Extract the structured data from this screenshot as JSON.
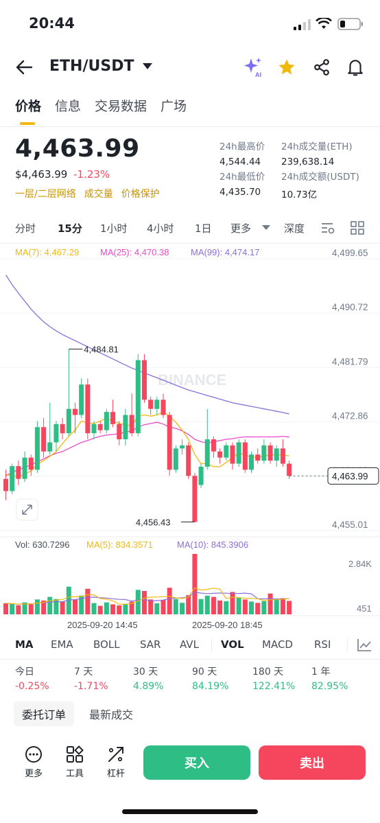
{
  "status_bar": {
    "time": "20:44"
  },
  "header": {
    "pair": "ETH/USDT"
  },
  "tabs": [
    "价格",
    "信息",
    "交易数据",
    "广场"
  ],
  "ticker": {
    "last_price": "4,463.99",
    "fiat_price": "$4,463.99",
    "change_pct": "-1.23%",
    "tags": [
      "一层/二层网络",
      "成交量",
      "价格保护"
    ],
    "stats": [
      {
        "label": "24h最高价",
        "value": "4,544.44"
      },
      {
        "label": "24h成交量(ETH)",
        "value": "239,638.14"
      },
      {
        "label": "24h最低价",
        "value": "4,435.70"
      },
      {
        "label": "24h成交额(USDT)",
        "value": "10.73亿"
      }
    ]
  },
  "intervals": {
    "items": [
      "分时",
      "15分",
      "1小时",
      "4小时",
      "1日",
      "更多",
      "深度"
    ],
    "active": "15分"
  },
  "ma_legend": {
    "ma7": "MA(7): 4,467.29",
    "ma25": "MA(25): 4,470.38",
    "ma99": "MA(99): 4,474.17"
  },
  "vol_legend": {
    "vol": "Vol: 630.7296",
    "ma5": "MA(5): 834.3571",
    "ma10": "MA(10): 845.3906"
  },
  "watermark": "BINANCE",
  "colors": {
    "up": "#2ebd85",
    "down": "#f6465d",
    "ma7": "#f0b90b",
    "ma25": "#e84ac9",
    "ma99": "#8a6ed9",
    "accent": "#f0b90b"
  },
  "chart_data": {
    "type": "candlestick",
    "price_axis": {
      "labels": [
        "4,499.65",
        "4,490.72",
        "4,481.79",
        "4,472.86",
        "4,464.93",
        "4,455.01"
      ],
      "ylim": [
        4455.01,
        4499.65
      ]
    },
    "volume_axis": {
      "labels": [
        "2.84K",
        "451"
      ]
    },
    "x_labels": [
      "2025-09-20 14:45",
      "2025-09-20 18:45"
    ],
    "high_label": "4,484.81",
    "low_label": "4,456.43",
    "current_price_label": "4,463.99",
    "candles": [
      {
        "o": 4463.5,
        "c": 4461.5,
        "h": 4465.0,
        "l": 4460.0,
        "v": 520
      },
      {
        "o": 4461.5,
        "c": 4465.6,
        "h": 4466.0,
        "l": 4461.0,
        "v": 480
      },
      {
        "o": 4465.6,
        "c": 4463.5,
        "h": 4466.5,
        "l": 4462.5,
        "v": 430
      },
      {
        "o": 4463.5,
        "c": 4467.0,
        "h": 4468.0,
        "l": 4463.0,
        "v": 560
      },
      {
        "o": 4467.0,
        "c": 4465.0,
        "h": 4467.5,
        "l": 4464.0,
        "v": 470
      },
      {
        "o": 4465.0,
        "c": 4472.0,
        "h": 4473.0,
        "l": 4464.5,
        "v": 700
      },
      {
        "o": 4472.0,
        "c": 4468.0,
        "h": 4473.5,
        "l": 4467.0,
        "v": 650
      },
      {
        "o": 4468.0,
        "c": 4469.5,
        "h": 4476.0,
        "l": 4467.5,
        "v": 820
      },
      {
        "o": 4469.5,
        "c": 4472.5,
        "h": 4473.0,
        "l": 4468.0,
        "v": 720
      },
      {
        "o": 4472.5,
        "c": 4471.0,
        "h": 4473.5,
        "l": 4470.0,
        "v": 600
      },
      {
        "o": 4471.0,
        "c": 4475.0,
        "h": 4484.81,
        "l": 4470.5,
        "v": 1300
      },
      {
        "o": 4475.0,
        "c": 4474.0,
        "h": 4476.0,
        "l": 4471.0,
        "v": 680
      },
      {
        "o": 4474.0,
        "c": 4479.0,
        "h": 4480.0,
        "l": 4473.5,
        "v": 880
      },
      {
        "o": 4479.0,
        "c": 4471.0,
        "h": 4480.0,
        "l": 4470.0,
        "v": 1200
      },
      {
        "o": 4471.0,
        "c": 4472.5,
        "h": 4473.0,
        "l": 4470.0,
        "v": 530
      },
      {
        "o": 4472.5,
        "c": 4471.5,
        "h": 4473.0,
        "l": 4471.0,
        "v": 400
      },
      {
        "o": 4471.5,
        "c": 4474.5,
        "h": 4475.0,
        "l": 4471.0,
        "v": 560
      },
      {
        "o": 4474.5,
        "c": 4472.5,
        "h": 4476.5,
        "l": 4472.0,
        "v": 470
      },
      {
        "o": 4472.5,
        "c": 4470.0,
        "h": 4473.0,
        "l": 4469.0,
        "v": 420
      },
      {
        "o": 4470.0,
        "c": 4474.0,
        "h": 4475.0,
        "l": 4469.0,
        "v": 500
      },
      {
        "o": 4474.0,
        "c": 4471.0,
        "h": 4477.5,
        "l": 4470.5,
        "v": 600
      },
      {
        "o": 4471.0,
        "c": 4483.0,
        "h": 4484.0,
        "l": 4470.5,
        "v": 1150
      },
      {
        "o": 4483.0,
        "c": 4476.5,
        "h": 4484.0,
        "l": 4476.0,
        "v": 1100
      },
      {
        "o": 4476.5,
        "c": 4475.0,
        "h": 4477.0,
        "l": 4474.0,
        "v": 700
      },
      {
        "o": 4475.0,
        "c": 4476.5,
        "h": 4477.0,
        "l": 4474.0,
        "v": 520
      },
      {
        "o": 4476.5,
        "c": 4474.0,
        "h": 4477.5,
        "l": 4473.5,
        "v": 680
      },
      {
        "o": 4474.0,
        "c": 4465.0,
        "h": 4474.5,
        "l": 4464.0,
        "v": 1250
      },
      {
        "o": 4465.0,
        "c": 4468.5,
        "h": 4469.0,
        "l": 4464.5,
        "v": 720
      },
      {
        "o": 4468.5,
        "c": 4469.0,
        "h": 4470.0,
        "l": 4467.5,
        "v": 540
      },
      {
        "o": 4469.0,
        "c": 4464.0,
        "h": 4469.5,
        "l": 4463.5,
        "v": 900
      },
      {
        "o": 4464.0,
        "c": 4456.43,
        "h": 4464.5,
        "l": 4456.43,
        "v": 2840
      },
      {
        "o": 4462.5,
        "c": 4465.5,
        "h": 4466.0,
        "l": 4462.0,
        "v": 720
      },
      {
        "o": 4465.5,
        "c": 4470.0,
        "h": 4475.0,
        "l": 4465.0,
        "v": 880
      },
      {
        "o": 4470.0,
        "c": 4468.0,
        "h": 4470.5,
        "l": 4467.0,
        "v": 820
      },
      {
        "o": 4468.0,
        "c": 4467.0,
        "h": 4468.5,
        "l": 4466.0,
        "v": 650
      },
      {
        "o": 4467.0,
        "c": 4469.0,
        "h": 4469.5,
        "l": 4466.5,
        "v": 620
      },
      {
        "o": 4469.0,
        "c": 4466.0,
        "h": 4469.5,
        "l": 4465.0,
        "v": 1050
      },
      {
        "o": 4466.0,
        "c": 4469.5,
        "h": 4470.0,
        "l": 4465.5,
        "v": 780
      },
      {
        "o": 4469.5,
        "c": 4465.0,
        "h": 4470.0,
        "l": 4464.5,
        "v": 700
      },
      {
        "o": 4465.0,
        "c": 4467.5,
        "h": 4468.0,
        "l": 4464.5,
        "v": 600
      },
      {
        "o": 4467.5,
        "c": 4466.5,
        "h": 4468.5,
        "l": 4466.0,
        "v": 540
      },
      {
        "o": 4466.5,
        "c": 4469.0,
        "h": 4470.0,
        "l": 4466.0,
        "v": 620
      },
      {
        "o": 4469.0,
        "c": 4466.5,
        "h": 4469.5,
        "l": 4466.0,
        "v": 980
      },
      {
        "o": 4466.5,
        "c": 4468.5,
        "h": 4469.0,
        "l": 4465.5,
        "v": 700
      },
      {
        "o": 4468.5,
        "c": 4466.0,
        "h": 4470.0,
        "l": 4465.5,
        "v": 760
      },
      {
        "o": 4466.0,
        "c": 4463.99,
        "h": 4466.5,
        "l": 4463.5,
        "v": 631
      }
    ],
    "ma7": [
      4464.2,
      4464.0,
      4463.8,
      4464.3,
      4464.8,
      4465.9,
      4466.5,
      4467.2,
      4468.0,
      4469.3,
      4470.5,
      4471.5,
      4473.0,
      4472.7,
      4472.6,
      4473.0,
      4473.5,
      4473.0,
      4472.6,
      4472.4,
      4472.2,
      4473.8,
      4474.0,
      4473.8,
      4474.0,
      4474.5,
      4473.8,
      4472.8,
      4471.5,
      4470.0,
      4467.5,
      4466.0,
      4466.0,
      4465.5,
      4465.5,
      4466.2,
      4467.0,
      4467.8,
      4467.4,
      4467.1,
      4467.0,
      4467.3,
      4467.4,
      4467.5,
      4467.4,
      4467.29
    ],
    "ma25": [
      4464.0,
      4464.6,
      4465.0,
      4465.4,
      4465.8,
      4466.3,
      4466.8,
      4467.3,
      4467.7,
      4468.0,
      4468.5,
      4469.0,
      4469.5,
      4469.8,
      4470.2,
      4470.5,
      4470.7,
      4470.8,
      4470.9,
      4471.2,
      4471.4,
      4472.0,
      4472.4,
      4472.6,
      4472.8,
      4472.5,
      4472.0,
      4471.8,
      4471.4,
      4470.8,
      4470.0,
      4469.6,
      4469.4,
      4469.6,
      4469.8,
      4470.0,
      4470.1,
      4470.3,
      4470.4,
      4470.4,
      4470.4,
      4470.4,
      4470.4,
      4470.4,
      4470.5,
      4470.38
    ],
    "ma99": [
      4497.0,
      4495.4,
      4494.0,
      4492.7,
      4491.4,
      4490.3,
      4489.3,
      4488.5,
      4487.8,
      4487.2,
      4486.7,
      4486.2,
      4485.7,
      4485.2,
      4484.7,
      4484.2,
      4483.7,
      4483.2,
      4482.7,
      4482.2,
      4481.7,
      4481.3,
      4480.9,
      4480.5,
      4480.1,
      4479.7,
      4479.3,
      4478.9,
      4478.5,
      4478.1,
      4477.8,
      4477.5,
      4477.2,
      4476.9,
      4476.6,
      4476.3,
      4476.0,
      4475.8,
      4475.6,
      4475.4,
      4475.2,
      4475.0,
      4474.8,
      4474.6,
      4474.4,
      4474.17
    ]
  },
  "indicators": {
    "items": [
      "MA",
      "EMA",
      "BOLL",
      "SAR",
      "AVL",
      "VOL",
      "MACD",
      "RSI"
    ],
    "active": [
      "MA",
      "VOL"
    ]
  },
  "performance": [
    {
      "label": "今日",
      "value": "-0.25%"
    },
    {
      "label": "7 天",
      "value": "-1.71%"
    },
    {
      "label": "30 天",
      "value": "4.89%"
    },
    {
      "label": "90 天",
      "value": "84.19%"
    },
    {
      "label": "180 天",
      "value": "122.41%"
    },
    {
      "label": "1 年",
      "value": "82.95%"
    }
  ],
  "order_tabs": [
    "委托订单",
    "最新成交"
  ],
  "bottom_bar": {
    "more": "更多",
    "tools": "工具",
    "leverage": "杠杆",
    "buy": "买入",
    "sell": "卖出"
  }
}
